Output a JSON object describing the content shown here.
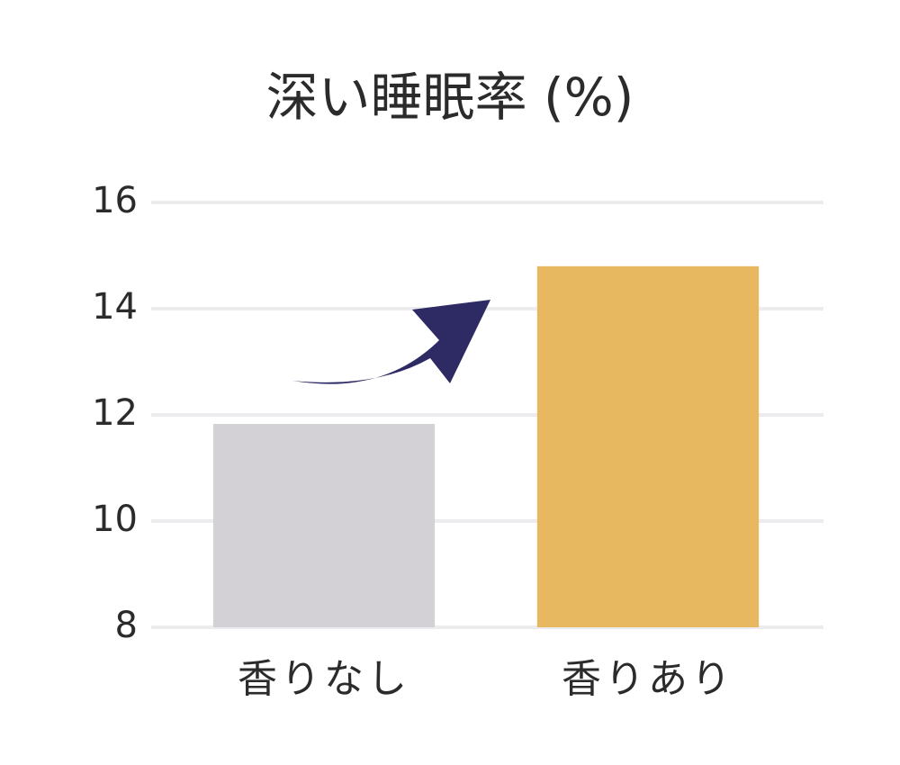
{
  "chart_data": {
    "type": "bar",
    "title": "深い睡眠率 (%)",
    "categories": [
      "香りなし",
      "香りあり"
    ],
    "values": [
      11.83,
      14.8
    ],
    "colors": [
      "#d3d1d6",
      "#e8b860"
    ],
    "ylim": [
      8,
      16
    ],
    "yticks": [
      8,
      10,
      12,
      14,
      16
    ],
    "grid": true
  }
}
